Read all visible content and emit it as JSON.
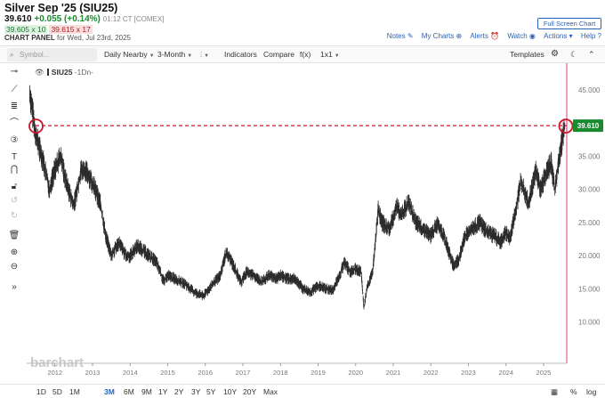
{
  "header": {
    "title": "Silver Sep '25 (SIU25)",
    "last": "39.610",
    "change": "+0.055 (+0.14%)",
    "time": "01:12 CT [COMEX]",
    "bid": "39.605 x 10",
    "ask": "39.615 x 17",
    "panel_label": "CHART PANEL",
    "panel_date": "for Wed, Jul 23rd, 2025",
    "fullscreen_label": "Full Screen Chart",
    "links": {
      "notes": "Notes",
      "my_charts": "My Charts",
      "alerts": "Alerts",
      "watch": "Watch",
      "actions": "Actions",
      "help": "Help"
    }
  },
  "toolbar": {
    "symbol_placeholder": "Symbol...",
    "frequency": "Daily Nearby",
    "period": "3-Month",
    "chart_type_icon": "candlestick-icon",
    "indicators": "Indicators",
    "compare": "Compare",
    "fx": "f(x)",
    "layout": "1x1",
    "templates": "Templates"
  },
  "legend": {
    "symbol": "SIU25",
    "period": "-1Dn-"
  },
  "watermark": "barchart",
  "price_tag": "39.610",
  "ranges": [
    "1D",
    "5D",
    "1M",
    "3M",
    "6M",
    "9M",
    "1Y",
    "2Y",
    "3Y",
    "5Y",
    "10Y",
    "20Y",
    "Max"
  ],
  "active_range": "3M",
  "bottom_right": {
    "percent": "%",
    "log": "log"
  },
  "colors": {
    "accent": "#2a63b8",
    "price_line": "#d0142c",
    "price_tag_bg": "#1a8a2e",
    "right_axis_line": "#d93c8a",
    "bars": "#2b2b2b"
  },
  "chart_data": {
    "type": "line",
    "title": "",
    "x_axis_labels": [
      "2012",
      "2013",
      "2014",
      "2015",
      "2016",
      "2017",
      "2018",
      "2019",
      "2020",
      "2021",
      "2022",
      "2023",
      "2024",
      "2025"
    ],
    "y_axis_labels": [
      "45.000",
      "40.000",
      "35.000",
      "30.000",
      "25.000",
      "20.000",
      "15.000",
      "10.000"
    ],
    "ylim": [
      9,
      47
    ],
    "current_price": 39.61,
    "series": [
      {
        "values": [
          [
            2011.33,
            44.5
          ],
          [
            2011.5,
            38
          ],
          [
            2011.7,
            34
          ],
          [
            2011.85,
            30
          ],
          [
            2012.0,
            33
          ],
          [
            2012.15,
            35
          ],
          [
            2012.3,
            31
          ],
          [
            2012.5,
            27.5
          ],
          [
            2012.7,
            33
          ],
          [
            2012.85,
            32.5
          ],
          [
            2013.0,
            31
          ],
          [
            2013.2,
            28
          ],
          [
            2013.35,
            23
          ],
          [
            2013.5,
            20
          ],
          [
            2013.7,
            22
          ],
          [
            2013.9,
            19.8
          ],
          [
            2014.0,
            20
          ],
          [
            2014.2,
            21.5
          ],
          [
            2014.5,
            20
          ],
          [
            2014.7,
            19
          ],
          [
            2014.9,
            16
          ],
          [
            2015.0,
            17
          ],
          [
            2015.2,
            16.5
          ],
          [
            2015.5,
            15.5
          ],
          [
            2015.7,
            14.5
          ],
          [
            2015.95,
            13.9
          ],
          [
            2016.1,
            15
          ],
          [
            2016.4,
            17
          ],
          [
            2016.55,
            20.5
          ],
          [
            2016.75,
            18.5
          ],
          [
            2016.95,
            16
          ],
          [
            2017.1,
            17.5
          ],
          [
            2017.3,
            17
          ],
          [
            2017.5,
            16
          ],
          [
            2017.7,
            17
          ],
          [
            2017.9,
            16.5
          ],
          [
            2018.0,
            17
          ],
          [
            2018.2,
            16.5
          ],
          [
            2018.4,
            16.5
          ],
          [
            2018.6,
            15
          ],
          [
            2018.8,
            14.5
          ],
          [
            2019.0,
            15.5
          ],
          [
            2019.2,
            15
          ],
          [
            2019.4,
            14.8
          ],
          [
            2019.6,
            17.5
          ],
          [
            2019.7,
            19
          ],
          [
            2019.85,
            17.5
          ],
          [
            2020.0,
            18
          ],
          [
            2020.15,
            17.5
          ],
          [
            2020.22,
            12
          ],
          [
            2020.3,
            15
          ],
          [
            2020.45,
            17.5
          ],
          [
            2020.6,
            27
          ],
          [
            2020.7,
            25
          ],
          [
            2020.9,
            24
          ],
          [
            2021.1,
            27.5
          ],
          [
            2021.2,
            26
          ],
          [
            2021.4,
            28
          ],
          [
            2021.6,
            25
          ],
          [
            2021.8,
            24
          ],
          [
            2022.0,
            23
          ],
          [
            2022.2,
            25
          ],
          [
            2022.4,
            22
          ],
          [
            2022.6,
            18.5
          ],
          [
            2022.75,
            19.5
          ],
          [
            2022.9,
            23
          ],
          [
            2023.1,
            24
          ],
          [
            2023.3,
            25
          ],
          [
            2023.5,
            23.5
          ],
          [
            2023.7,
            23
          ],
          [
            2023.85,
            22
          ],
          [
            2024.0,
            23.5
          ],
          [
            2024.1,
            22.5
          ],
          [
            2024.3,
            28
          ],
          [
            2024.4,
            31.5
          ],
          [
            2024.6,
            28
          ],
          [
            2024.8,
            33
          ],
          [
            2024.9,
            30
          ],
          [
            2025.05,
            32
          ],
          [
            2025.2,
            34
          ],
          [
            2025.3,
            30
          ],
          [
            2025.45,
            36
          ],
          [
            2025.56,
            39.6
          ]
        ]
      }
    ]
  }
}
